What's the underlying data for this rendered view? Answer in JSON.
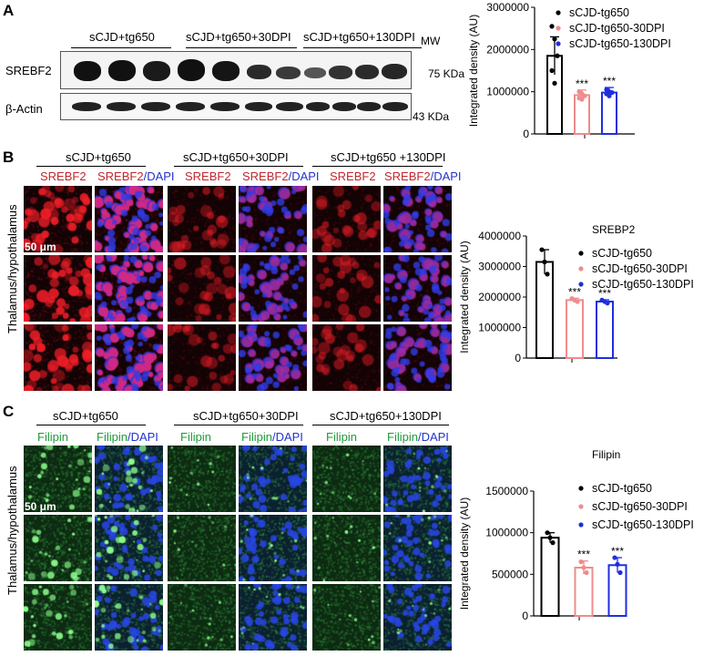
{
  "panels": {
    "A": {
      "label": "A",
      "groups": [
        "sCJD+tg650",
        "sCJD+tg650+30DPI",
        "sCJD+tg650+130DPI"
      ],
      "mw_label": "MW",
      "rows": [
        {
          "name": "SREBF2",
          "mw": "75 KDa"
        },
        {
          "name": "β-Actin",
          "mw": "43 KDa"
        }
      ]
    },
    "B": {
      "label": "B",
      "groups": [
        "sCJD+tg650",
        "sCJD+tg650+30DPI",
        "sCJD+tg650 +130DPI"
      ],
      "stain_a": "SREBF2",
      "stain_b_1": "SREBF2",
      "stain_b_2": "/DAPI",
      "side_label": "Thalamus/hypothalamus",
      "scale": "50 μm"
    },
    "C": {
      "label": "C",
      "groups": [
        "sCJD+tg650",
        "sCJD+tg650+30DPI",
        "sCJD+tg650+130DPI"
      ],
      "stain_a": "Filipin",
      "stain_b_1": "Filipin",
      "stain_b_2": "/DAPI",
      "side_label": "Thalamus/hypothalamus",
      "scale": "50 μm"
    }
  },
  "chart_data": [
    {
      "type": "bar",
      "title": "",
      "ylabel": "Integrated density (AU)",
      "ylim": [
        0,
        3000000
      ],
      "yticks": [
        "0",
        "1000000",
        "2000000",
        "3000000"
      ],
      "categories": [
        "sCJD-tg650",
        "sCJD-tg650-30DPI",
        "sCJD-tg650-130DPI"
      ],
      "values": [
        1850000,
        920000,
        980000
      ],
      "errors": [
        450000,
        120000,
        120000
      ],
      "points": [
        [
          2550000,
          2250000,
          1850000,
          1500000,
          1200000
        ],
        [
          1000000,
          950000,
          900000,
          850000,
          820000
        ],
        [
          1050000,
          1000000,
          980000,
          950000,
          900000
        ]
      ],
      "significance": [
        "",
        "***",
        "***"
      ],
      "colors": [
        "#000000",
        "#f08c8c",
        "#1f2ee0"
      ],
      "legend": "top-right"
    },
    {
      "type": "bar",
      "title": "SREBP2",
      "ylabel": "Integrated density (AU)",
      "ylim": [
        0,
        4000000
      ],
      "yticks": [
        "0",
        "1000000",
        "2000000",
        "3000000",
        "4000000"
      ],
      "categories": [
        "sCJD-tg650",
        "sCJD-tg650-30DPI",
        "sCJD-tg650-130DPI"
      ],
      "values": [
        3150000,
        1900000,
        1850000
      ],
      "errors": [
        400000,
        60000,
        60000
      ],
      "points": [
        [
          3550000,
          3150000,
          2750000
        ],
        [
          1950000,
          1900000,
          1850000
        ],
        [
          1900000,
          1850000,
          1800000
        ]
      ],
      "significance": [
        "",
        "***",
        "***"
      ],
      "colors": [
        "#000000",
        "#f08c8c",
        "#1f2ee0"
      ],
      "legend": "top-right"
    },
    {
      "type": "bar",
      "title": "Filipin",
      "ylabel": "Integrated density (AU)",
      "ylim": [
        0,
        1500000
      ],
      "yticks": [
        "0",
        "500000",
        "1000000",
        "1500000"
      ],
      "categories": [
        "sCJD-tg650",
        "sCJD-tg650-30DPI",
        "sCJD-tg650-130DPI"
      ],
      "values": [
        940000,
        580000,
        610000
      ],
      "errors": [
        60000,
        80000,
        90000
      ],
      "points": [
        [
          1000000,
          940000,
          880000
        ],
        [
          650000,
          580000,
          520000
        ],
        [
          700000,
          620000,
          520000
        ]
      ],
      "significance": [
        "",
        "***",
        "***"
      ],
      "colors": [
        "#000000",
        "#f08c8c",
        "#1f2ee0"
      ],
      "legend": "top-right"
    }
  ]
}
